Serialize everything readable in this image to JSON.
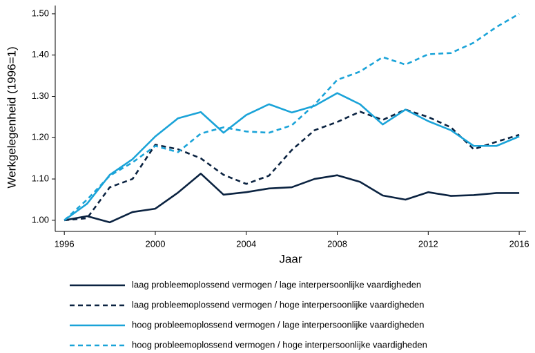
{
  "chart_data": {
    "type": "line",
    "ylabel": "Werkgelegenheid (1996=1)",
    "xlabel": "Jaar",
    "x": [
      1996,
      1997,
      1998,
      1999,
      2000,
      2001,
      2002,
      2003,
      2004,
      2005,
      2006,
      2007,
      2008,
      2009,
      2010,
      2011,
      2012,
      2013,
      2014,
      2015,
      2016
    ],
    "series": [
      {
        "name": "laag probleemoplossend vermogen / lage interpersoonlijke vaardigheden",
        "color": "#0b2341",
        "dashed": false,
        "values": [
          1.0,
          1.01,
          0.995,
          1.02,
          1.028,
          1.067,
          1.113,
          1.062,
          1.068,
          1.077,
          1.08,
          1.1,
          1.109,
          1.093,
          1.06,
          1.05,
          1.068,
          1.059,
          1.061,
          1.066,
          1.066
        ]
      },
      {
        "name": "laag probleemoplossend vermogen / hoge interpersoonlijke vaardigheden",
        "color": "#0b2341",
        "dashed": true,
        "values": [
          1.0,
          1.005,
          1.08,
          1.1,
          1.183,
          1.172,
          1.15,
          1.11,
          1.088,
          1.108,
          1.17,
          1.218,
          1.238,
          1.263,
          1.243,
          1.268,
          1.25,
          1.225,
          1.172,
          1.19,
          1.207
        ]
      },
      {
        "name": "hoog probleemoplossend vermogen / lage interpersoonlijke vaardigheden",
        "color": "#1aa3d8",
        "dashed": false,
        "values": [
          1.0,
          1.04,
          1.11,
          1.148,
          1.203,
          1.247,
          1.262,
          1.212,
          1.255,
          1.281,
          1.261,
          1.277,
          1.308,
          1.281,
          1.232,
          1.268,
          1.24,
          1.218,
          1.18,
          1.18,
          1.203
        ]
      },
      {
        "name": "hoog probleemoplossend vermogen / hoge interpersoonlijke vaardigheden",
        "color": "#1aa3d8",
        "dashed": true,
        "values": [
          1.0,
          1.05,
          1.108,
          1.14,
          1.18,
          1.165,
          1.21,
          1.225,
          1.215,
          1.212,
          1.23,
          1.28,
          1.34,
          1.36,
          1.395,
          1.377,
          1.402,
          1.405,
          1.43,
          1.468,
          1.5
        ]
      }
    ],
    "xlim": [
      1995.6,
      2016.3
    ],
    "xticks": [
      1996,
      2000,
      2004,
      2008,
      2012,
      2016
    ],
    "ylim": [
      0.973,
      1.52
    ],
    "yticks": [
      {
        "value": 1.0,
        "label": "1.00"
      },
      {
        "value": 1.1,
        "label": "1.10"
      },
      {
        "value": 1.2,
        "label": "1.20"
      },
      {
        "value": 1.3,
        "label": "1.30"
      },
      {
        "value": 1.4,
        "label": "1.40"
      },
      {
        "value": 1.5,
        "label": "1.50"
      }
    ],
    "grid": false,
    "legend": "bottom"
  }
}
